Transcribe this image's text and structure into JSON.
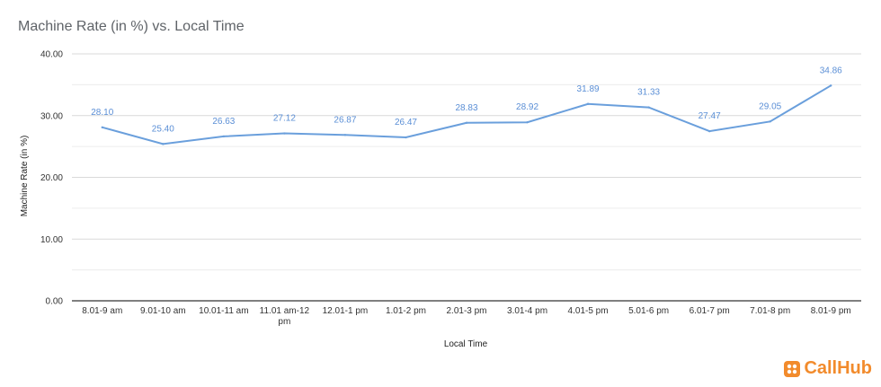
{
  "chart_data": {
    "type": "line",
    "title": "Machine Rate (in %) vs. Local Time",
    "xlabel": "Local Time",
    "ylabel": "Machine Rate (in %)",
    "categories": [
      "8.01-9 am",
      "9.01-10 am",
      "10.01-11 am",
      "11.01 am-12 pm",
      "12.01-1 pm",
      "1.01-2 pm",
      "2.01-3 pm",
      "3.01-4 pm",
      "4.01-5 pm",
      "5.01-6 pm",
      "6.01-7 pm",
      "7.01-8 pm",
      "8.01-9 pm"
    ],
    "series": [
      {
        "values": [
          28.1,
          25.4,
          26.63,
          27.12,
          26.87,
          26.47,
          28.83,
          28.92,
          31.89,
          31.33,
          27.47,
          29.05,
          34.86
        ]
      }
    ],
    "data_labels": [
      "28.10",
      "25.40",
      "26.63",
      "27.12",
      "26.87",
      "26.47",
      "28.83",
      "28.92",
      "31.89",
      "31.33",
      "27.47",
      "29.05",
      "34.86"
    ],
    "y_ticks": [
      "0.00",
      "10.00",
      "20.00",
      "30.00",
      "40.00"
    ],
    "ylim": [
      0,
      40
    ],
    "grid": true,
    "line_color": "#6a9fdc",
    "label_color": "#5b8fd6"
  },
  "brand": {
    "name": "CallHub",
    "icon": "callhub-logo-icon",
    "color": "#f28b2c"
  }
}
